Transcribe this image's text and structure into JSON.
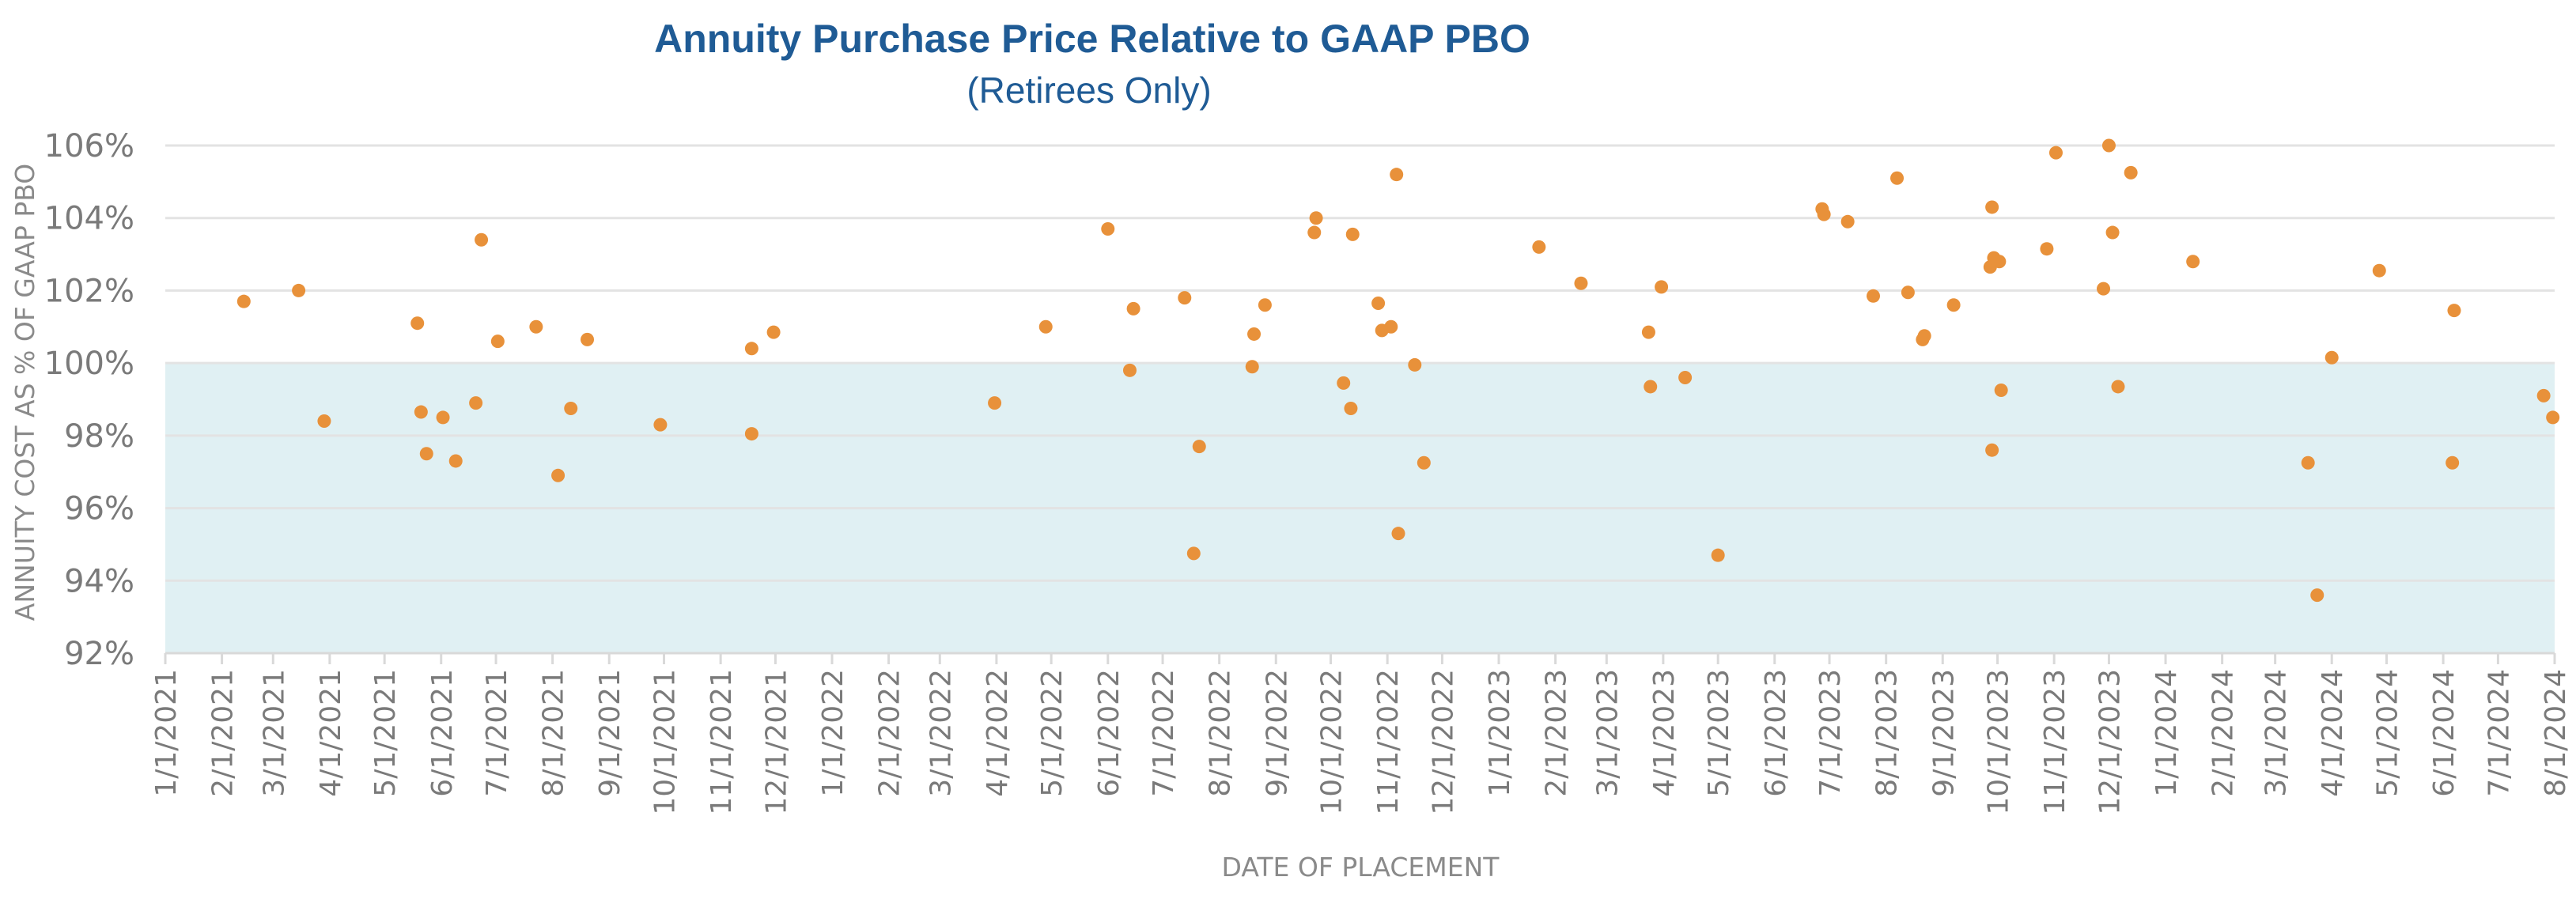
{
  "chart_data": {
    "type": "scatter",
    "title": "Annuity Purchase Price Relative to GAAP PBO",
    "subtitle": "(Retirees Only)",
    "xlabel": "DATE OF PLACEMENT",
    "ylabel": "ANNUITY COST AS % OF GAAP PBO",
    "xlim": [
      "2021-01-01",
      "2024-08-01"
    ],
    "ylim": [
      92,
      106
    ],
    "y_ticks": [
      92,
      94,
      96,
      98,
      100,
      102,
      104,
      106
    ],
    "y_tick_labels": [
      "92%",
      "94%",
      "96%",
      "98%",
      "100%",
      "102%",
      "104%",
      "106%"
    ],
    "x_ticks": [
      "2021-01-01",
      "2021-02-01",
      "2021-03-01",
      "2021-04-01",
      "2021-05-01",
      "2021-06-01",
      "2021-07-01",
      "2021-08-01",
      "2021-09-01",
      "2021-10-01",
      "2021-11-01",
      "2021-12-01",
      "2022-01-01",
      "2022-02-01",
      "2022-03-01",
      "2022-04-01",
      "2022-05-01",
      "2022-06-01",
      "2022-07-01",
      "2022-08-01",
      "2022-09-01",
      "2022-10-01",
      "2022-11-01",
      "2022-12-01",
      "2023-01-01",
      "2023-02-01",
      "2023-03-01",
      "2023-04-01",
      "2023-05-01",
      "2023-06-01",
      "2023-07-01",
      "2023-08-01",
      "2023-09-01",
      "2023-10-01",
      "2023-11-01",
      "2023-12-01",
      "2024-01-01",
      "2024-02-01",
      "2024-03-01",
      "2024-04-01",
      "2024-05-01",
      "2024-06-01",
      "2024-07-01",
      "2024-08-01"
    ],
    "x_tick_labels": [
      "1/1/2021",
      "2/1/2021",
      "3/1/2021",
      "4/1/2021",
      "5/1/2021",
      "6/1/2021",
      "7/1/2021",
      "8/1/2021",
      "9/1/2021",
      "10/1/2021",
      "11/1/2021",
      "12/1/2021",
      "1/1/2022",
      "2/1/2022",
      "3/1/2022",
      "4/1/2022",
      "5/1/2022",
      "6/1/2022",
      "7/1/2022",
      "8/1/2022",
      "9/1/2022",
      "10/1/2022",
      "11/1/2022",
      "12/1/2022",
      "1/1/2023",
      "2/1/2023",
      "3/1/2023",
      "4/1/2023",
      "5/1/2023",
      "6/1/2023",
      "7/1/2023",
      "8/1/2023",
      "9/1/2023",
      "10/1/2023",
      "11/1/2023",
      "12/1/2023",
      "1/1/2024",
      "2/1/2024",
      "3/1/2024",
      "4/1/2024",
      "5/1/2024",
      "6/1/2024",
      "7/1/2024",
      "8/1/2024"
    ],
    "grid": true,
    "shaded_band": {
      "from": 92,
      "to": 100,
      "color": "#e0f0f3"
    },
    "colors": {
      "points": "#e8913a",
      "title": "#1f5b95",
      "grid": "#e3e3e3",
      "text": "#7a7a7a"
    },
    "series": [
      {
        "points": [
          {
            "x": "2021-02-13",
            "y": 101.7
          },
          {
            "x": "2021-03-15",
            "y": 102.0
          },
          {
            "x": "2021-03-29",
            "y": 98.4
          },
          {
            "x": "2021-05-19",
            "y": 101.1
          },
          {
            "x": "2021-05-21",
            "y": 98.65
          },
          {
            "x": "2021-05-24",
            "y": 97.5
          },
          {
            "x": "2021-06-02",
            "y": 98.5
          },
          {
            "x": "2021-06-09",
            "y": 97.3
          },
          {
            "x": "2021-06-20",
            "y": 98.9
          },
          {
            "x": "2021-06-23",
            "y": 103.4
          },
          {
            "x": "2021-07-02",
            "y": 100.6
          },
          {
            "x": "2021-07-23",
            "y": 101.0
          },
          {
            "x": "2021-08-04",
            "y": 96.9
          },
          {
            "x": "2021-08-11",
            "y": 98.75
          },
          {
            "x": "2021-08-20",
            "y": 100.65
          },
          {
            "x": "2021-09-29",
            "y": 98.3
          },
          {
            "x": "2021-11-18",
            "y": 100.4
          },
          {
            "x": "2021-11-18",
            "y": 98.05
          },
          {
            "x": "2021-11-30",
            "y": 100.85
          },
          {
            "x": "2022-03-31",
            "y": 98.9
          },
          {
            "x": "2022-04-28",
            "y": 101.0
          },
          {
            "x": "2022-06-01",
            "y": 103.7
          },
          {
            "x": "2022-06-13",
            "y": 99.8
          },
          {
            "x": "2022-06-15",
            "y": 101.5
          },
          {
            "x": "2022-07-13",
            "y": 101.8
          },
          {
            "x": "2022-07-18",
            "y": 94.75
          },
          {
            "x": "2022-07-21",
            "y": 97.7
          },
          {
            "x": "2022-08-19",
            "y": 99.9
          },
          {
            "x": "2022-08-20",
            "y": 100.8
          },
          {
            "x": "2022-08-26",
            "y": 101.6
          },
          {
            "x": "2022-09-22",
            "y": 103.6
          },
          {
            "x": "2022-09-23",
            "y": 104.0
          },
          {
            "x": "2022-10-08",
            "y": 99.45
          },
          {
            "x": "2022-10-12",
            "y": 98.75
          },
          {
            "x": "2022-10-13",
            "y": 103.55
          },
          {
            "x": "2022-10-27",
            "y": 101.65
          },
          {
            "x": "2022-10-29",
            "y": 100.9
          },
          {
            "x": "2022-11-03",
            "y": 101.0
          },
          {
            "x": "2022-11-06",
            "y": 105.2
          },
          {
            "x": "2022-11-07",
            "y": 95.3
          },
          {
            "x": "2022-11-16",
            "y": 99.95
          },
          {
            "x": "2022-11-21",
            "y": 97.25
          },
          {
            "x": "2023-01-23",
            "y": 103.2
          },
          {
            "x": "2023-02-15",
            "y": 102.2
          },
          {
            "x": "2023-03-24",
            "y": 100.85
          },
          {
            "x": "2023-03-25",
            "y": 99.35
          },
          {
            "x": "2023-03-31",
            "y": 102.1
          },
          {
            "x": "2023-04-13",
            "y": 99.6
          },
          {
            "x": "2023-05-01",
            "y": 94.7
          },
          {
            "x": "2023-06-27",
            "y": 104.25
          },
          {
            "x": "2023-06-28",
            "y": 104.1
          },
          {
            "x": "2023-07-11",
            "y": 103.9
          },
          {
            "x": "2023-07-25",
            "y": 101.85
          },
          {
            "x": "2023-08-07",
            "y": 105.1
          },
          {
            "x": "2023-08-13",
            "y": 101.95
          },
          {
            "x": "2023-08-21",
            "y": 100.65
          },
          {
            "x": "2023-08-22",
            "y": 100.75
          },
          {
            "x": "2023-09-07",
            "y": 101.6
          },
          {
            "x": "2023-09-27",
            "y": 102.65
          },
          {
            "x": "2023-09-28",
            "y": 97.6
          },
          {
            "x": "2023-09-28",
            "y": 104.3
          },
          {
            "x": "2023-09-29",
            "y": 102.9
          },
          {
            "x": "2023-10-02",
            "y": 102.8
          },
          {
            "x": "2023-10-03",
            "y": 99.25
          },
          {
            "x": "2023-10-28",
            "y": 103.15
          },
          {
            "x": "2023-11-02",
            "y": 105.8
          },
          {
            "x": "2023-11-28",
            "y": 102.05
          },
          {
            "x": "2023-12-01",
            "y": 106.0
          },
          {
            "x": "2023-12-03",
            "y": 103.6
          },
          {
            "x": "2023-12-06",
            "y": 99.35
          },
          {
            "x": "2023-12-13",
            "y": 105.25
          },
          {
            "x": "2024-01-16",
            "y": 102.8
          },
          {
            "x": "2024-03-19",
            "y": 97.25
          },
          {
            "x": "2024-03-24",
            "y": 93.6
          },
          {
            "x": "2024-04-01",
            "y": 100.15
          },
          {
            "x": "2024-04-27",
            "y": 102.55
          },
          {
            "x": "2024-06-06",
            "y": 97.25
          },
          {
            "x": "2024-06-07",
            "y": 101.45
          },
          {
            "x": "2024-07-26",
            "y": 99.1
          },
          {
            "x": "2024-07-31",
            "y": 98.5
          }
        ]
      }
    ]
  }
}
